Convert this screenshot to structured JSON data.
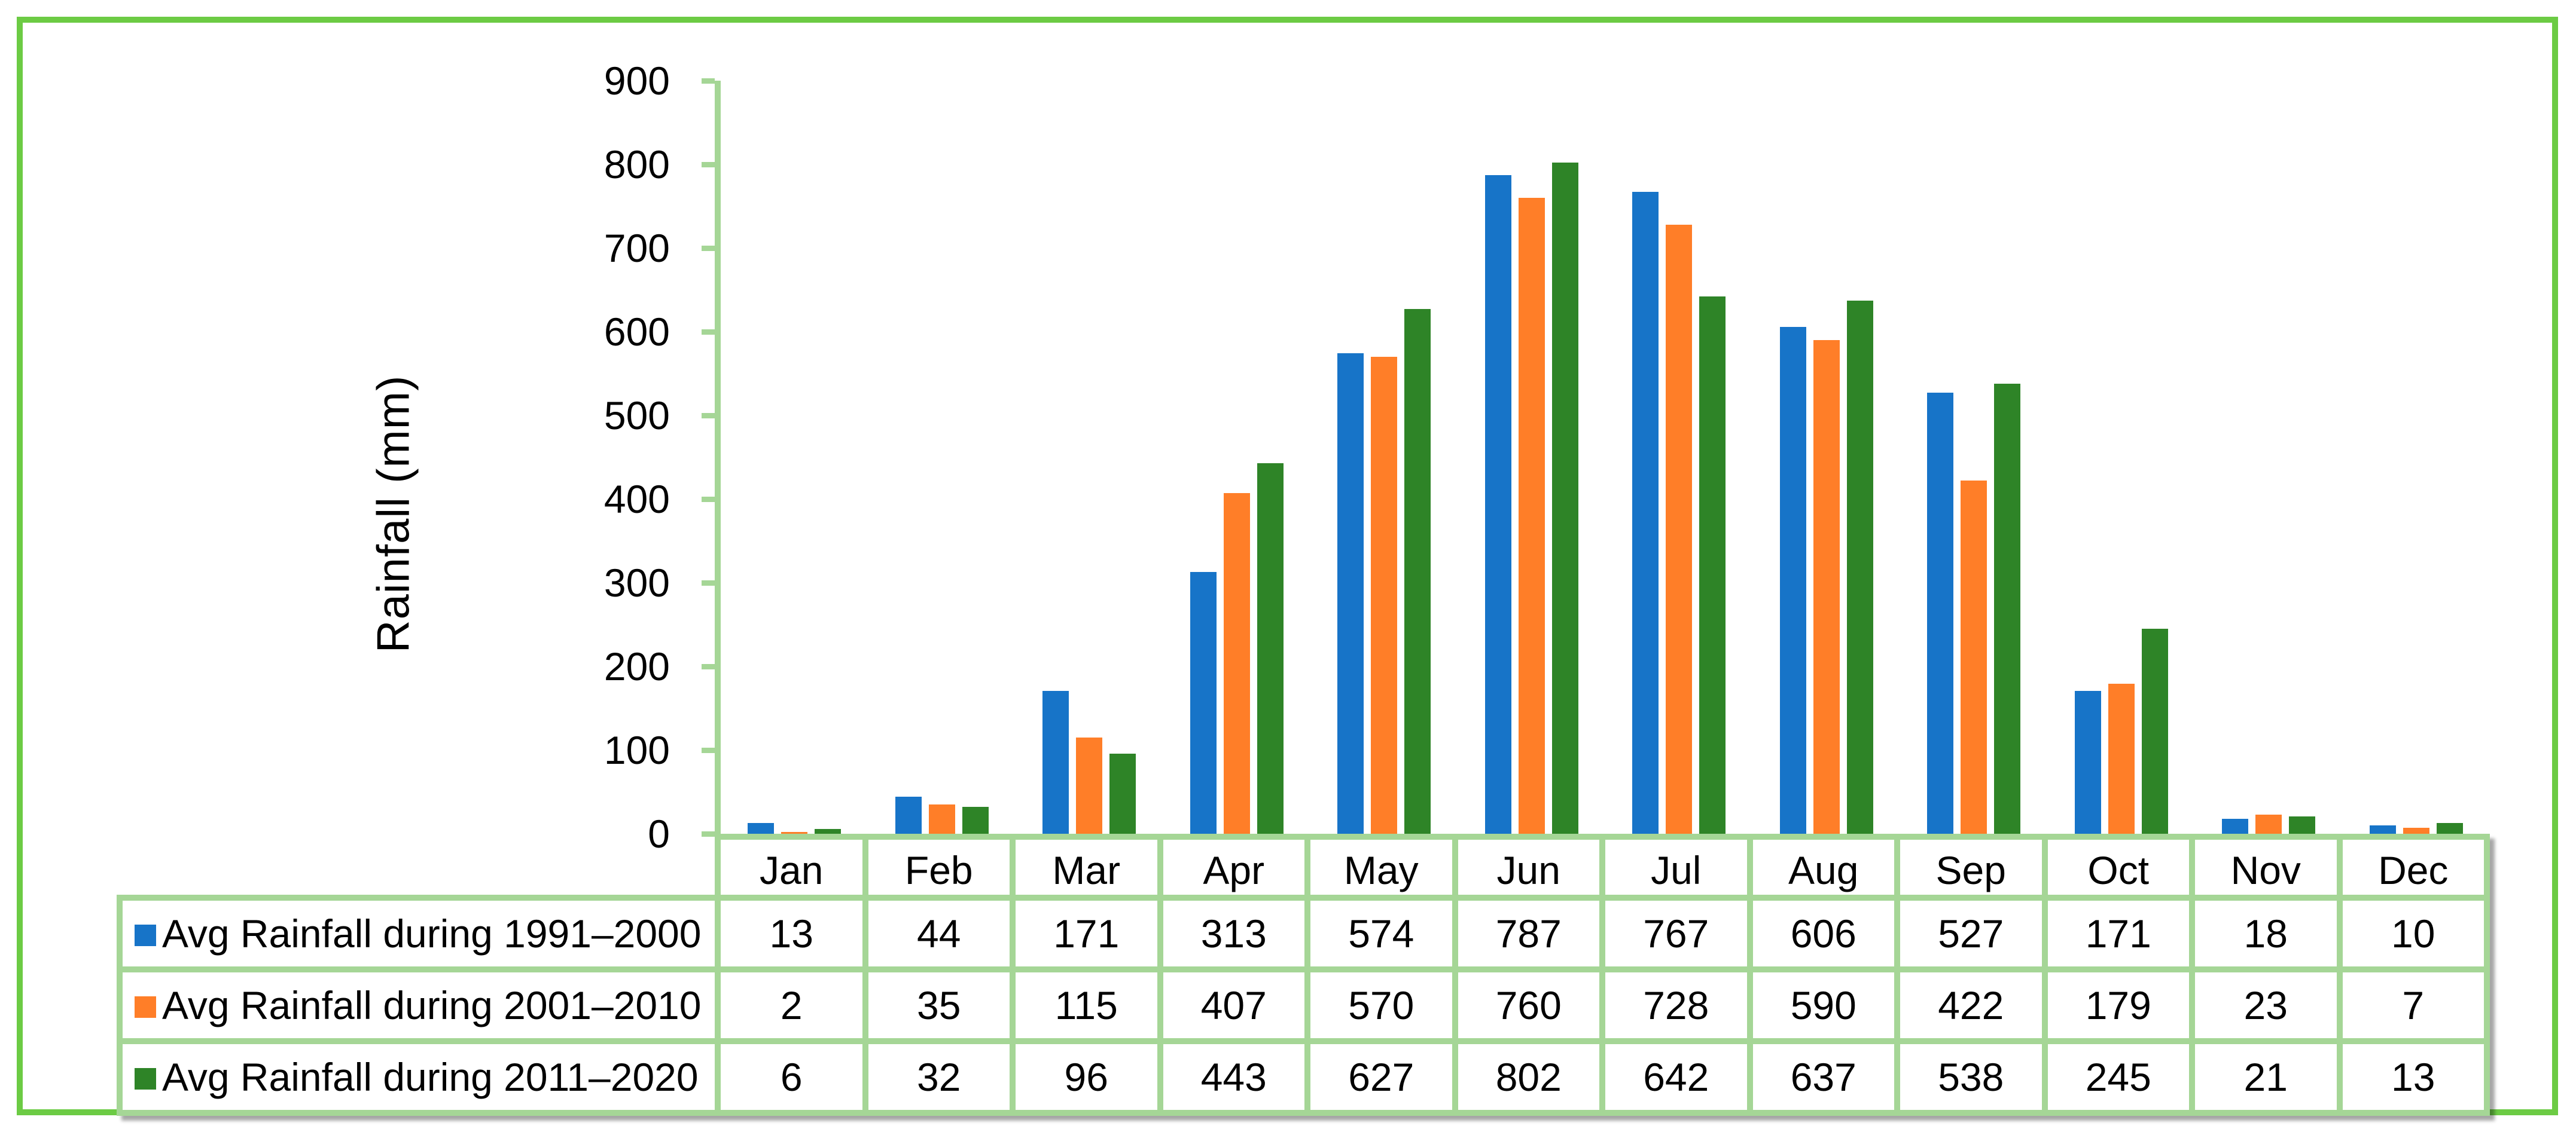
{
  "chart_data": {
    "type": "bar",
    "title": "",
    "xlabel": "",
    "ylabel": "Rainfall (mm)",
    "ylim": [
      0,
      900
    ],
    "ytick_step": 100,
    "grid": false,
    "legend_position": "table-left",
    "categories": [
      "Jan",
      "Feb",
      "Mar",
      "Apr",
      "May",
      "Jun",
      "Jul",
      "Aug",
      "Sep",
      "Oct",
      "Nov",
      "Dec"
    ],
    "series": [
      {
        "name": "Avg Rainfall during 1991–2000",
        "color": "#1774C8",
        "values": [
          13,
          44,
          171,
          313,
          574,
          787,
          767,
          606,
          527,
          171,
          18,
          10
        ]
      },
      {
        "name": "Avg Rainfall during 2001–2010",
        "color": "#FF7E28",
        "values": [
          2,
          35,
          115,
          407,
          570,
          760,
          728,
          590,
          422,
          179,
          23,
          7
        ]
      },
      {
        "name": "Avg Rainfall during 2011–2020",
        "color": "#2E8427",
        "values": [
          6,
          32,
          96,
          443,
          627,
          802,
          642,
          637,
          538,
          245,
          21,
          13
        ]
      }
    ]
  },
  "colors": {
    "frame_border": "#6CCB44",
    "grid_line": "#A5D696",
    "background": "#FFFFFF",
    "text": "#000000"
  }
}
